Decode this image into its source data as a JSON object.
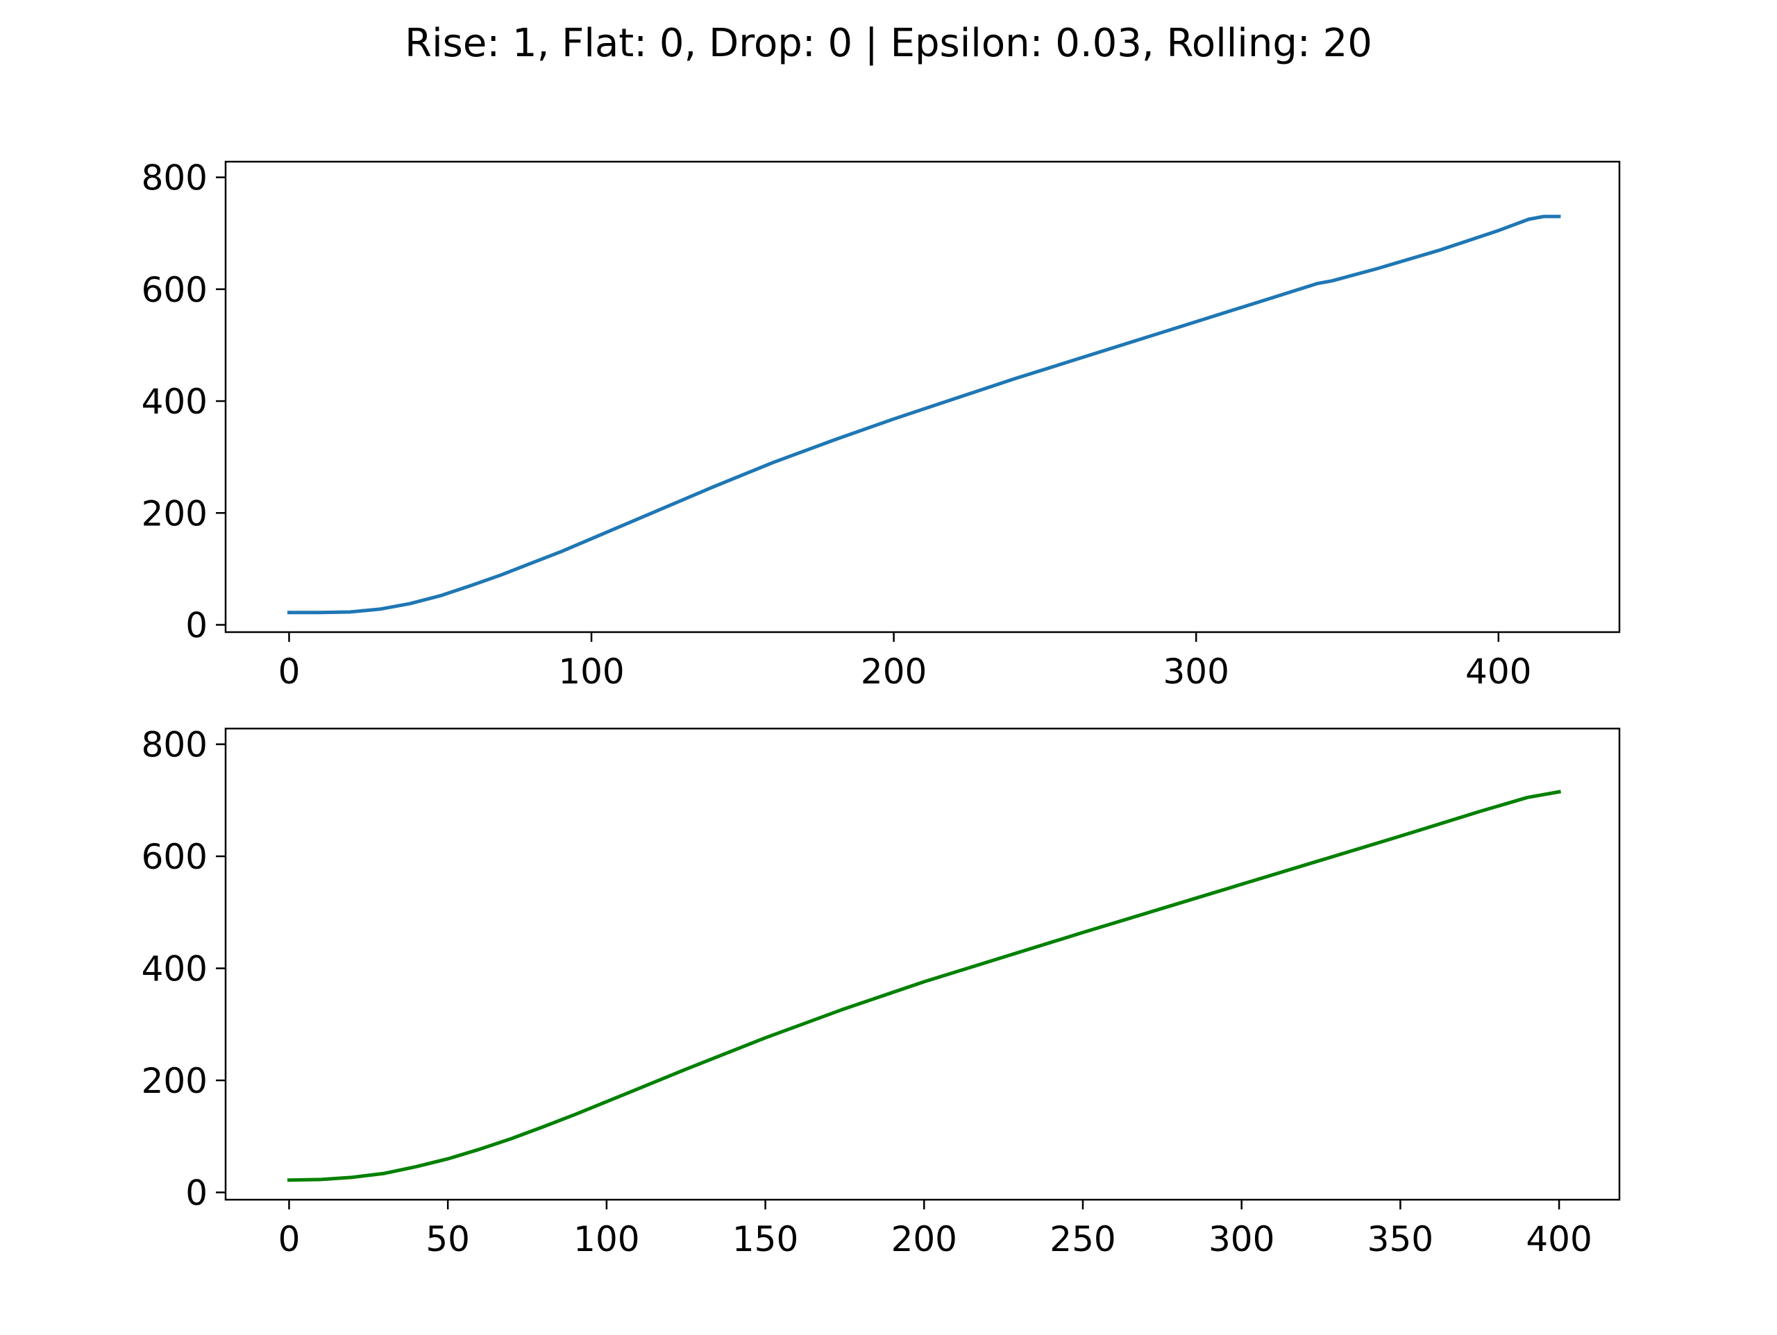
{
  "figure": {
    "suptitle": "Rise: 1, Flat: 0, Drop: 0 | Epsilon: 0.03, Rolling: 20"
  },
  "chart_data": [
    {
      "type": "line",
      "title": "",
      "xlabel": "",
      "ylabel": "",
      "xlim": [
        -21,
        440
      ],
      "ylim": [
        -13,
        828
      ],
      "xticks": [
        0,
        100,
        200,
        300,
        400
      ],
      "yticks": [
        0,
        200,
        400,
        600,
        800
      ],
      "grid": false,
      "legend": null,
      "series": [
        {
          "color": "#1f77b4",
          "x": [
            0,
            10,
            20,
            30,
            40,
            50,
            60,
            70,
            80,
            90,
            100,
            120,
            140,
            160,
            180,
            200,
            220,
            240,
            260,
            280,
            300,
            320,
            340,
            345,
            360,
            380,
            400,
            410,
            415,
            420
          ],
          "y": [
            22,
            22,
            23,
            28,
            38,
            52,
            70,
            89,
            110,
            131,
            154,
            200,
            246,
            290,
            330,
            368,
            404,
            440,
            474,
            508,
            542,
            576,
            610,
            615,
            637,
            669,
            705,
            725,
            730,
            730
          ]
        }
      ]
    },
    {
      "type": "line",
      "title": "",
      "xlabel": "",
      "ylabel": "",
      "xlim": [
        -20,
        419
      ],
      "ylim": [
        -13,
        828
      ],
      "xticks": [
        0,
        50,
        100,
        150,
        200,
        250,
        300,
        350,
        400
      ],
      "yticks": [
        0,
        200,
        400,
        600,
        800
      ],
      "grid": false,
      "legend": null,
      "series": [
        {
          "color": "#008000",
          "x": [
            0,
            10,
            20,
            30,
            40,
            50,
            60,
            70,
            80,
            90,
            100,
            125,
            150,
            175,
            200,
            225,
            250,
            275,
            300,
            325,
            350,
            375,
            390,
            400
          ],
          "y": [
            22,
            23,
            27,
            34,
            46,
            60,
            77,
            96,
            117,
            139,
            162,
            220,
            276,
            328,
            376,
            420,
            464,
            507,
            550,
            593,
            636,
            680,
            705,
            715
          ]
        }
      ]
    }
  ]
}
